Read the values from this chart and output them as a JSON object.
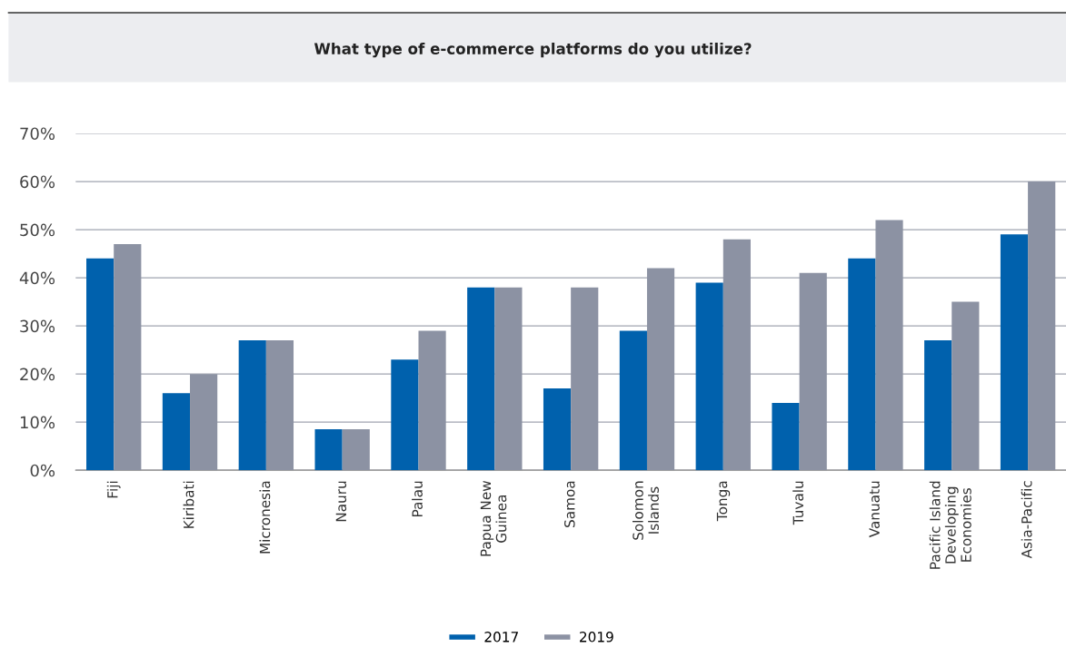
{
  "chart_data": {
    "type": "bar",
    "title": "What type of e-commerce platforms do you utilize?",
    "categories": [
      "Fiji",
      "Kiribati",
      "Micronesia",
      "Nauru",
      "Palau",
      "Papua New\nGuinea",
      "Samoa",
      "Solomon\nIslands",
      "Tonga",
      "Tuvalu",
      "Vanuatu",
      "Pacific Island\nDeveloping\nEconomies",
      "Asia-Pacific"
    ],
    "series": [
      {
        "name": "2017",
        "color": "#0061ad",
        "values": [
          44,
          16,
          27,
          8.5,
          23,
          38,
          17,
          29,
          39,
          14,
          44,
          27,
          49
        ]
      },
      {
        "name": "2019",
        "color": "#8c92a3",
        "values": [
          47,
          20,
          27,
          8.5,
          29,
          38,
          38,
          42,
          48,
          41,
          52,
          35,
          60
        ]
      }
    ],
    "ylim": [
      0,
      70
    ],
    "yticks": [
      {
        "value": 0,
        "label": "0%"
      },
      {
        "value": 10,
        "label": "10%"
      },
      {
        "value": 20,
        "label": "20%"
      },
      {
        "value": 30,
        "label": "30%"
      },
      {
        "value": 40,
        "label": "40%"
      },
      {
        "value": 50,
        "label": "50%"
      },
      {
        "value": 60,
        "label": "60%"
      },
      {
        "value": 70,
        "label": "70%"
      }
    ],
    "grid": "y",
    "legend": "bottom"
  }
}
